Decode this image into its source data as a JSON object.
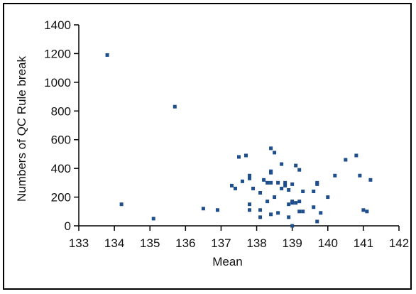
{
  "chart_data": {
    "type": "scatter",
    "title": "",
    "xlabel": "Mean",
    "ylabel": "Numbers of QC Rule break",
    "xlim": [
      133,
      142
    ],
    "ylim": [
      0,
      1400
    ],
    "xticks": [
      133,
      134,
      135,
      136,
      137,
      138,
      139,
      140,
      141,
      142
    ],
    "yticks": [
      0,
      200,
      400,
      600,
      800,
      1000,
      1200,
      1400
    ],
    "grid": false,
    "legend": "none",
    "marker_color": "#1f4e8c",
    "series": [
      {
        "x": [
          133.8,
          134.2,
          135.1,
          135.7,
          136.5,
          136.9,
          137.3,
          137.4,
          137.5,
          137.6,
          137.7,
          137.8,
          137.8,
          137.8,
          137.8,
          137.9,
          138.1,
          138.1,
          138.1,
          138.2,
          138.3,
          138.3,
          138.4,
          138.4,
          138.4,
          138.4,
          138.4,
          138.5,
          138.5,
          138.6,
          138.6,
          138.7,
          138.7,
          138.8,
          138.8,
          138.9,
          138.9,
          138.9,
          139.0,
          139.0,
          139.0,
          139.0,
          139.1,
          139.1,
          139.2,
          139.2,
          139.2,
          139.3,
          139.3,
          139.6,
          139.6,
          139.7,
          139.7,
          139.7,
          139.8,
          140.0,
          140.2,
          140.5,
          140.8,
          140.9,
          141.0,
          141.1,
          141.2
        ],
        "y": [
          1190,
          150,
          50,
          830,
          120,
          110,
          280,
          260,
          480,
          310,
          490,
          110,
          150,
          330,
          350,
          260,
          230,
          110,
          60,
          320,
          300,
          170,
          540,
          370,
          380,
          300,
          80,
          510,
          200,
          90,
          300,
          260,
          430,
          280,
          300,
          60,
          250,
          150,
          0,
          290,
          160,
          170,
          420,
          160,
          390,
          100,
          170,
          100,
          240,
          240,
          130,
          300,
          290,
          30,
          90,
          200,
          350,
          460,
          490,
          350,
          110,
          100,
          320
        ]
      }
    ]
  }
}
